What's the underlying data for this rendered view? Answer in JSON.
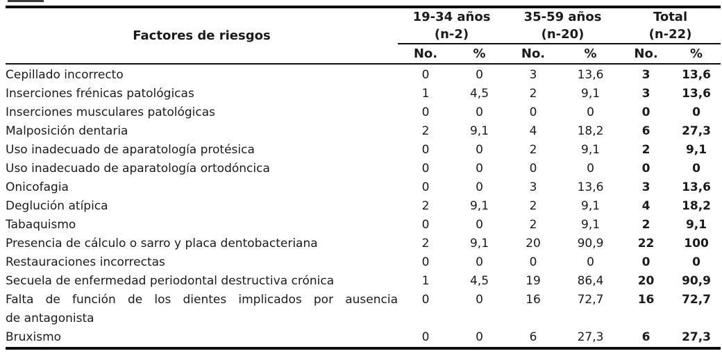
{
  "table": {
    "factor_header": "Factores de riesgos",
    "groups": [
      {
        "title": "19-34 años",
        "subtitle": "(n-2)"
      },
      {
        "title": "35-59 años",
        "subtitle": "(n-20)"
      },
      {
        "title": "Total",
        "subtitle": "(n-22)"
      }
    ],
    "sub_headers": {
      "no": "No.",
      "pct": "%"
    },
    "rows": [
      {
        "label": "Cepillado incorrecto",
        "values": [
          "0",
          "0",
          "3",
          "13,6",
          "3",
          "13,6"
        ]
      },
      {
        "label": "Inserciones frénicas patológicas",
        "values": [
          "1",
          "4,5",
          "2",
          "9,1",
          "3",
          "13,6"
        ]
      },
      {
        "label": "Inserciones musculares patológicas",
        "values": [
          "0",
          "0",
          "0",
          "0",
          "0",
          "0"
        ]
      },
      {
        "label": "Malposición dentaria",
        "values": [
          "2",
          "9,1",
          "4",
          "18,2",
          "6",
          "27,3"
        ]
      },
      {
        "label": "Uso inadecuado de aparatología protésica",
        "values": [
          "0",
          "0",
          "2",
          "9,1",
          "2",
          "9,1"
        ]
      },
      {
        "label": "Uso inadecuado de aparatología ortodóncica",
        "values": [
          "0",
          "0",
          "0",
          "0",
          "0",
          "0"
        ]
      },
      {
        "label": "Onicofagia",
        "values": [
          "0",
          "0",
          "3",
          "13,6",
          "3",
          "13,6"
        ]
      },
      {
        "label": "Deglución atípica",
        "values": [
          "2",
          "9,1",
          "2",
          "9,1",
          "4",
          "18,2"
        ]
      },
      {
        "label": "Tabaquismo",
        "values": [
          "0",
          "0",
          "2",
          "9,1",
          "2",
          "9,1"
        ]
      },
      {
        "label": "Presencia de cálculo o sarro y placa dentobacteriana",
        "values": [
          "2",
          "9,1",
          "20",
          "90,9",
          "22",
          "100"
        ]
      },
      {
        "label": "Restauraciones incorrectas",
        "values": [
          "0",
          "0",
          "0",
          "0",
          "0",
          "0"
        ]
      },
      {
        "label": "Secuela de enfermedad periodontal destructiva crónica",
        "values": [
          "1",
          "4,5",
          "19",
          "86,4",
          "20",
          "90,9"
        ]
      },
      {
        "label": "Falta de función de los dientes implicados por ausencia",
        "label2": "de antagonista",
        "values": [
          "0",
          "0",
          "16",
          "72,7",
          "16",
          "72,7"
        ]
      },
      {
        "label": "Bruxismo",
        "values": [
          "0",
          "0",
          "6",
          "27,3",
          "6",
          "27,3"
        ]
      }
    ]
  }
}
